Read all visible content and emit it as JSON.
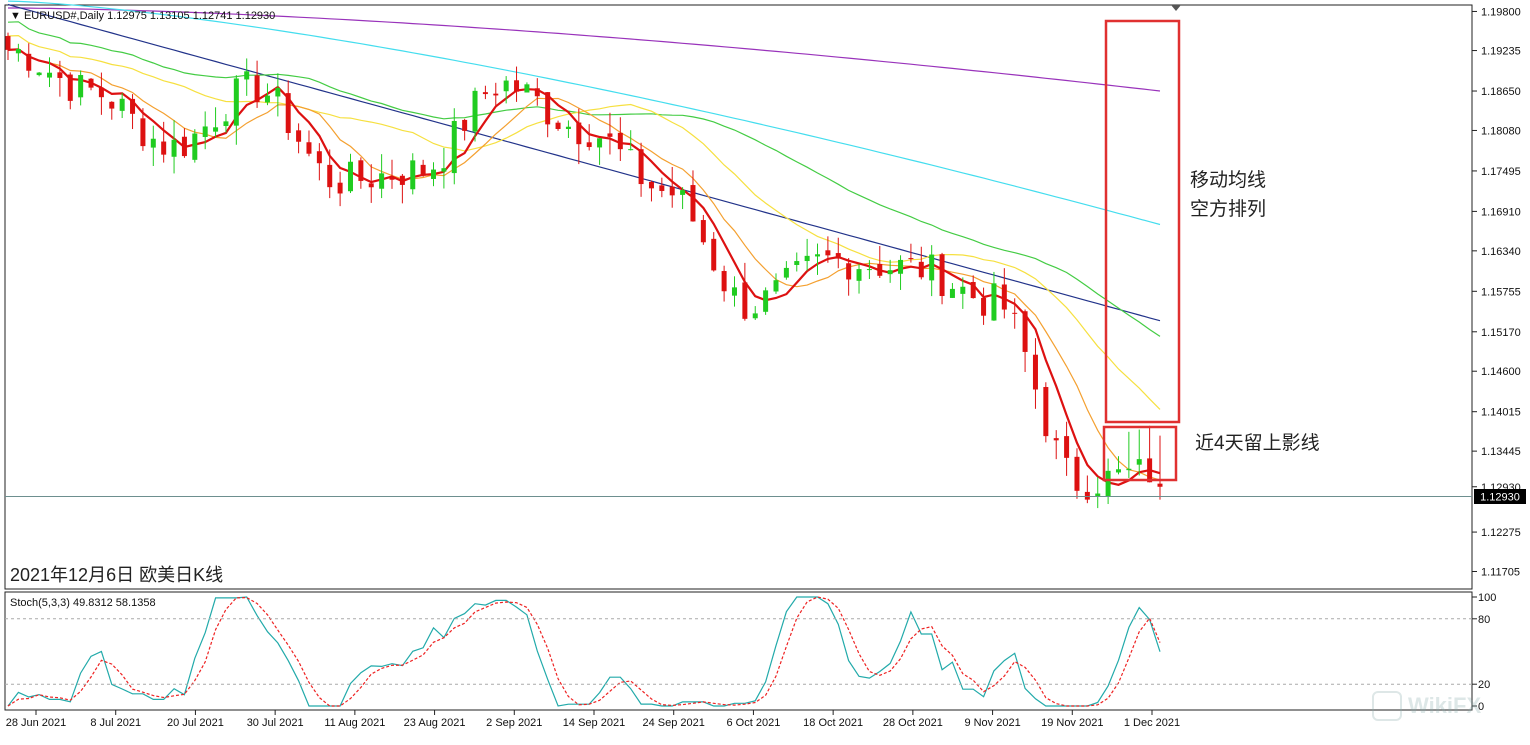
{
  "window": {
    "title": "▼ EURUSD#,Daily  1.12975 1.13105 1.12741 1.12930",
    "chart_caption": "2021年12月6日 欧美日K线",
    "current_price_label": "1.12930"
  },
  "annotations": {
    "box1_text_line1": "移动均线",
    "box1_text_line2": "空方排列",
    "box2_text": "近4天留上影线",
    "box_color": "#e03030"
  },
  "price_axis": {
    "ticks": [
      "1.19800",
      "1.19235",
      "1.18650",
      "1.18080",
      "1.17495",
      "1.16910",
      "1.16340",
      "1.15755",
      "1.15170",
      "1.14600",
      "1.14015",
      "1.13445",
      "1.12930",
      "1.12275",
      "1.11705"
    ]
  },
  "date_axis": {
    "ticks": [
      "28 Jun 2021",
      "8 Jul 2021",
      "20 Jul 2021",
      "30 Jul 2021",
      "11 Aug 2021",
      "23 Aug 2021",
      "2 Sep 2021",
      "14 Sep 2021",
      "24 Sep 2021",
      "6 Oct 2021",
      "18 Oct 2021",
      "28 Oct 2021",
      "9 Nov 2021",
      "19 Nov 2021",
      "1 Dec 2021"
    ]
  },
  "stoch_panel": {
    "title": "Stoch(5,3,3) 49.8312 58.1358",
    "levels": [
      "100",
      "80",
      "20",
      "0"
    ]
  },
  "colors": {
    "bull_candle": "#20cc20",
    "bear_candle": "#dd1111",
    "ma_fast": "#dd1111",
    "ma_orange": "#f4a030",
    "ma_yellow": "#f6e040",
    "ma_green": "#44cc44",
    "ma_navy": "#22338a",
    "ma_cyan": "#44ddee",
    "ma_purple": "#9933bb",
    "stoch_main": "#22aaaa",
    "stoch_signal": "#ee2222"
  },
  "watermark": "WikiFX",
  "chart_data": {
    "type": "candlestick",
    "symbol": "EURUSD#",
    "timeframe": "Daily",
    "last_bar": {
      "open": 1.12975,
      "high": 1.13105,
      "low": 1.12741,
      "close": 1.1293
    },
    "ylim": [
      1.1151,
      1.1985
    ],
    "x_labels": [
      "28 Jun 2021",
      "8 Jul 2021",
      "20 Jul 2021",
      "30 Jul 2021",
      "11 Aug 2021",
      "23 Aug 2021",
      "2 Sep 2021",
      "14 Sep 2021",
      "24 Sep 2021",
      "6 Oct 2021",
      "18 Oct 2021",
      "28 Oct 2021",
      "9 Nov 2021",
      "19 Nov 2021",
      "1 Dec 2021"
    ],
    "close_path": [
      [
        "28 Jun 2021",
        1.1925
      ],
      [
        "8 Jul 2021",
        1.1865
      ],
      [
        "20 Jul 2021",
        1.1785
      ],
      [
        "30 Jul 2021",
        1.187
      ],
      [
        "11 Aug 2021",
        1.1735
      ],
      [
        "23 Aug 2021",
        1.175
      ],
      [
        "2 Sep 2021",
        1.1875
      ],
      [
        "14 Sep 2021",
        1.181
      ],
      [
        "24 Sep 2021",
        1.172
      ],
      [
        "6 Oct 2021",
        1.1555
      ],
      [
        "18 Oct 2021",
        1.162
      ],
      [
        "28 Oct 2021",
        1.161
      ],
      [
        "9 Nov 2021",
        1.156
      ],
      [
        "19 Nov 2021",
        1.13
      ],
      [
        "1 Dec 2021",
        1.1315
      ]
    ],
    "stochastic": {
      "name": "Stoch(5,3,3)",
      "main": 49.8312,
      "signal": 58.1358,
      "levels": [
        20,
        80
      ],
      "ylim": [
        0,
        100
      ]
    }
  }
}
